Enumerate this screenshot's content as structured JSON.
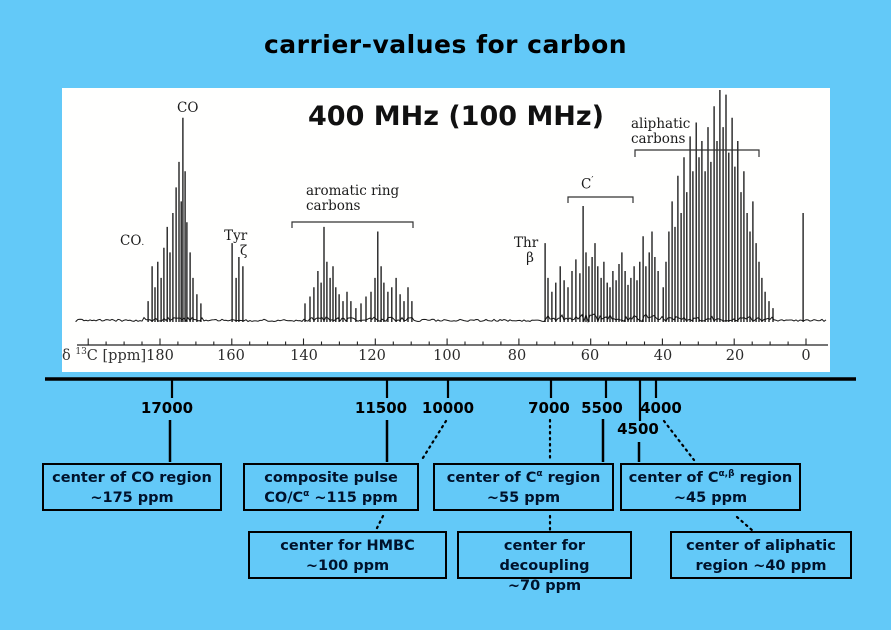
{
  "slide": {
    "title": "carrier-values for carbon",
    "bg_color": "#63C9F8",
    "ink_color": "#000000"
  },
  "panel": {
    "heading": "400 MHz (100 MHz)",
    "labels": {
      "co_top": "CO",
      "co_left": "CO",
      "co_left_sub": ".",
      "tyr": "Tyr",
      "tyr_sub": "ζ",
      "aromatic_l1": "aromatic ring",
      "aromatic_l2": "carbons",
      "thr": "Thr",
      "thr_sub": "β",
      "cprime_base": "C",
      "cprime_mark": "′",
      "aliphatic_l1": "aliphatic",
      "aliphatic_l2": "carbons"
    },
    "axis": {
      "delta": "δ",
      "isotope": "13",
      "nucleus": "C [ppm]",
      "ticks": [
        "180",
        "160",
        "140",
        "120",
        "100",
        "80",
        "60",
        "40",
        "20",
        "0"
      ]
    }
  },
  "carrier_scale": {
    "values": [
      {
        "label": "17000"
      },
      {
        "label": "11500"
      },
      {
        "label": "10000"
      },
      {
        "label": "7000"
      },
      {
        "label": "5500"
      },
      {
        "label": "4000"
      }
    ],
    "extra_value": {
      "label": "4500"
    }
  },
  "callouts": [
    {
      "lines": [
        [
          {
            "t": "center of CO region"
          }
        ],
        [
          {
            "t": "~175 ppm"
          }
        ]
      ]
    },
    {
      "lines": [
        [
          {
            "t": "composite pulse"
          }
        ],
        [
          {
            "t": "CO/C"
          },
          {
            "t": "α",
            "sup": true
          },
          {
            "t": " ~115 ppm"
          }
        ]
      ]
    },
    {
      "lines": [
        [
          {
            "t": "center of C"
          },
          {
            "t": "α",
            "sup": true
          },
          {
            "t": " region"
          }
        ],
        [
          {
            "t": "~55 ppm"
          }
        ]
      ]
    },
    {
      "lines": [
        [
          {
            "t": "center of C"
          },
          {
            "t": "α,β",
            "sup": true
          },
          {
            "t": " region"
          }
        ],
        [
          {
            "t": "~45 ppm"
          }
        ]
      ]
    },
    {
      "lines": [
        [
          {
            "t": "center for HMBC"
          }
        ],
        [
          {
            "t": "~100 ppm"
          }
        ]
      ]
    },
    {
      "lines": [
        [
          {
            "t": "center for decoupling"
          }
        ],
        [
          {
            "t": "~70 ppm"
          }
        ]
      ]
    },
    {
      "lines": [
        [
          {
            "t": "center of aliphatic"
          }
        ],
        [
          {
            "t": "region ~40 ppm"
          }
        ]
      ]
    }
  ],
  "carrier_mapping": [
    {
      "carrier": "17000",
      "target": "center of CO region ~175 ppm",
      "line": "solid"
    },
    {
      "carrier": "11500",
      "target": "composite pulse CO/Cα ~115 ppm",
      "line": "solid"
    },
    {
      "carrier": "10000",
      "target": "center for HMBC ~100 ppm",
      "line": "dotted"
    },
    {
      "carrier": "7000",
      "target": "center for decoupling ~70 ppm",
      "line": "dotted"
    },
    {
      "carrier": "5500",
      "target": "center of Cα region ~55 ppm",
      "line": "solid"
    },
    {
      "carrier": "4500",
      "target": "center of Cα,β region ~45 ppm",
      "line": "solid"
    },
    {
      "carrier": "4000",
      "target": "center of aliphatic region ~40 ppm",
      "line": "dotted"
    }
  ],
  "chart_data": {
    "type": "line",
    "description": "1D 13C NMR spectrum recorded at 400 MHz (100 MHz carbon)",
    "xlabel": "δ 13C [ppm]",
    "x_ticks": [
      180,
      160,
      140,
      120,
      100,
      80,
      60,
      40,
      20,
      0
    ],
    "x_axis_reversed": true,
    "regions": [
      {
        "name": "CO",
        "center_ppm": 175
      },
      {
        "name": "Tyr ζ",
        "center_ppm": 157
      },
      {
        "name": "aromatic ring carbons",
        "range_ppm": [
          143,
          110
        ]
      },
      {
        "name": "Thr β",
        "center_ppm": 70
      },
      {
        "name": "C'",
        "range_ppm": [
          66,
          48
        ]
      },
      {
        "name": "aliphatic carbons",
        "range_ppm": [
          48,
          8
        ]
      }
    ],
    "peaks": [
      [
        183.3,
        9
      ],
      [
        182.2,
        24
      ],
      [
        181.4,
        15
      ],
      [
        180.6,
        26
      ],
      [
        179.7,
        19
      ],
      [
        178.9,
        32
      ],
      [
        178,
        41
      ],
      [
        177.2,
        30
      ],
      [
        176.4,
        47
      ],
      [
        175.5,
        58
      ],
      [
        174.7,
        69
      ],
      [
        174.1,
        52
      ],
      [
        173.6,
        88
      ],
      [
        173,
        65
      ],
      [
        172.5,
        43
      ],
      [
        171.6,
        30
      ],
      [
        170.8,
        19
      ],
      [
        169.7,
        12
      ],
      [
        168.6,
        8
      ],
      [
        159.9,
        34
      ],
      [
        158.8,
        19
      ],
      [
        158,
        28
      ],
      [
        156.9,
        24
      ],
      [
        139.6,
        8
      ],
      [
        138.2,
        11
      ],
      [
        137.1,
        15
      ],
      [
        136,
        22
      ],
      [
        135.1,
        17
      ],
      [
        134.3,
        41
      ],
      [
        133.5,
        26
      ],
      [
        132.6,
        19
      ],
      [
        131.8,
        24
      ],
      [
        131,
        15
      ],
      [
        130.1,
        12
      ],
      [
        129,
        9
      ],
      [
        127.9,
        13
      ],
      [
        126.8,
        9
      ],
      [
        125.4,
        6
      ],
      [
        124,
        8
      ],
      [
        122.6,
        11
      ],
      [
        121.2,
        13
      ],
      [
        120.1,
        19
      ],
      [
        119.3,
        39
      ],
      [
        118.4,
        24
      ],
      [
        117.6,
        17
      ],
      [
        116.5,
        13
      ],
      [
        115.4,
        15
      ],
      [
        114.2,
        19
      ],
      [
        113.1,
        12
      ],
      [
        112,
        9
      ],
      [
        110.9,
        15
      ],
      [
        109.8,
        9
      ],
      [
        72.7,
        34
      ],
      [
        71.9,
        19
      ],
      [
        70.8,
        13
      ],
      [
        69.7,
        17
      ],
      [
        68.5,
        24
      ],
      [
        67.4,
        18
      ],
      [
        66.3,
        15
      ],
      [
        65.2,
        22
      ],
      [
        64.1,
        27
      ],
      [
        63,
        21
      ],
      [
        62.1,
        50
      ],
      [
        61.3,
        30
      ],
      [
        60.5,
        24
      ],
      [
        59.6,
        28
      ],
      [
        58.8,
        34
      ],
      [
        58,
        24
      ],
      [
        57.1,
        19
      ],
      [
        56.3,
        26
      ],
      [
        55.4,
        17
      ],
      [
        54.6,
        15
      ],
      [
        53.8,
        22
      ],
      [
        52.9,
        18
      ],
      [
        52.1,
        25
      ],
      [
        51.3,
        30
      ],
      [
        50.4,
        22
      ],
      [
        49.6,
        16
      ],
      [
        48.8,
        19
      ],
      [
        47.9,
        24
      ],
      [
        47.1,
        18
      ],
      [
        46.3,
        26
      ],
      [
        45.4,
        37
      ],
      [
        44.6,
        24
      ],
      [
        43.7,
        30
      ],
      [
        42.9,
        39
      ],
      [
        42.1,
        28
      ],
      [
        41.2,
        22
      ],
      [
        39.8,
        15
      ],
      [
        39,
        26
      ],
      [
        38.2,
        39
      ],
      [
        37.3,
        52
      ],
      [
        36.5,
        41
      ],
      [
        35.7,
        63
      ],
      [
        34.8,
        47
      ],
      [
        34,
        71
      ],
      [
        33.2,
        56
      ],
      [
        32.3,
        80
      ],
      [
        31.5,
        65
      ],
      [
        30.6,
        86
      ],
      [
        29.8,
        71
      ],
      [
        29,
        78
      ],
      [
        28.1,
        65
      ],
      [
        27.3,
        84
      ],
      [
        26.5,
        69
      ],
      [
        25.6,
        93
      ],
      [
        24.8,
        78
      ],
      [
        24,
        100
      ],
      [
        23.1,
        84
      ],
      [
        22.3,
        98
      ],
      [
        21.5,
        73
      ],
      [
        20.6,
        88
      ],
      [
        19.8,
        67
      ],
      [
        19,
        78
      ],
      [
        18.1,
        56
      ],
      [
        17.3,
        65
      ],
      [
        16.4,
        47
      ],
      [
        15.6,
        39
      ],
      [
        14.8,
        52
      ],
      [
        13.9,
        34
      ],
      [
        13.1,
        26
      ],
      [
        12.3,
        19
      ],
      [
        11.4,
        13
      ],
      [
        10.3,
        9
      ],
      [
        9.2,
        6
      ],
      [
        0.8,
        47
      ]
    ]
  }
}
